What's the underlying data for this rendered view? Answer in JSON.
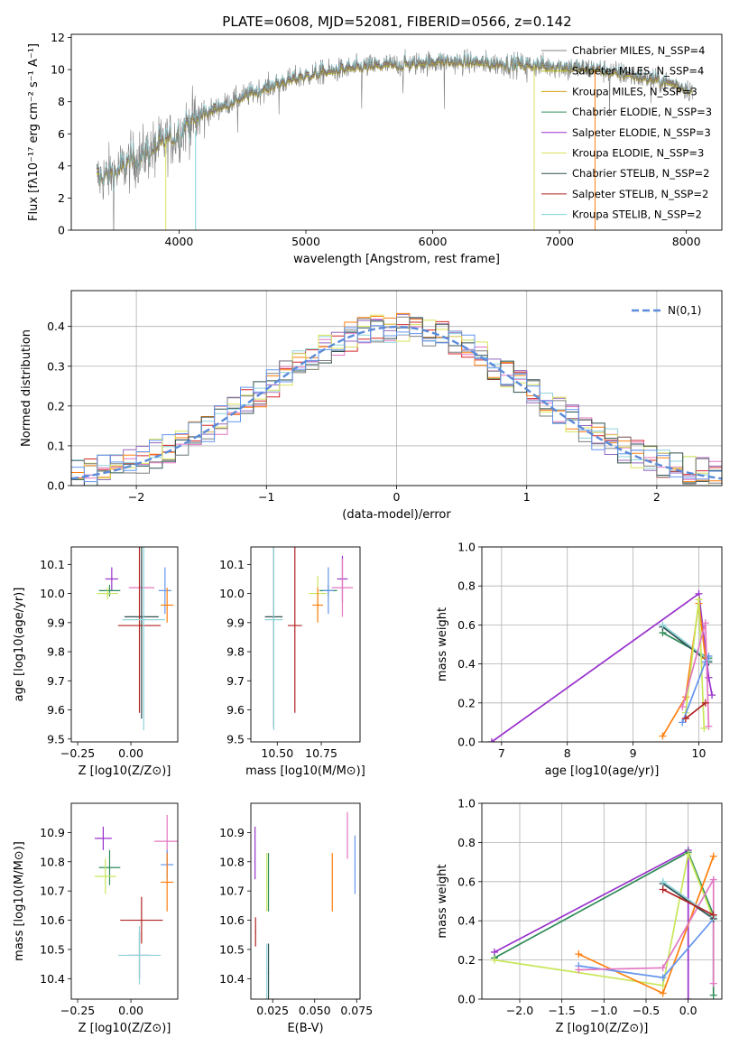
{
  "chart_data": [
    {
      "id": "spectrum",
      "type": "line",
      "title": "PLATE=0608, MJD=52081, FIBERID=0566, z=0.142",
      "xlabel": "wavelength [Angstrom, rest frame]",
      "ylabel": "Flux [fλ10⁻¹⁷ erg cm⁻² s⁻¹ A⁻¹]",
      "xlim": [
        3150,
        8280
      ],
      "ylim": [
        0,
        12.2
      ],
      "xticks": [
        4000,
        5000,
        6000,
        7000,
        8000
      ],
      "yticks": [
        0,
        2,
        4,
        6,
        8,
        10,
        12
      ],
      "grid": false,
      "legend_position": "top-right",
      "continuum": {
        "x": [
          3350,
          3500,
          3650,
          3800,
          3950,
          4100,
          4300,
          4500,
          4700,
          4900,
          5100,
          5300,
          5500,
          5700,
          5900,
          6100,
          6400,
          6700,
          7000,
          7300,
          7600,
          7900,
          8050
        ],
        "y": [
          3.2,
          3.6,
          4.4,
          5.1,
          5.7,
          6.8,
          7.6,
          8.3,
          8.9,
          9.4,
          9.8,
          10.0,
          10.2,
          10.3,
          10.4,
          10.5,
          10.4,
          10.3,
          10.2,
          10.0,
          9.6,
          9.1,
          8.7
        ]
      },
      "series": [
        {
          "name": "Chabrier MILES, N_SSP=4",
          "color": "#7f7f7f"
        },
        {
          "name": "Salpeter MILES, N_SSP=4",
          "color": "#bcbd22"
        },
        {
          "name": "Kroupa MILES, N_SSP=3",
          "color": "#d4a017"
        },
        {
          "name": "Chabrier ELODIE, N_SSP=3",
          "color": "#2e8b57"
        },
        {
          "name": "Salpeter ELODIE, N_SSP=3",
          "color": "#9932cc"
        },
        {
          "name": "Kroupa ELODIE, N_SSP=3",
          "color": "#dbe35b"
        },
        {
          "name": "Chabrier STELIB, N_SSP=2",
          "color": "#2f4f4f"
        },
        {
          "name": "Salpeter STELIB, N_SSP=2",
          "color": "#b22222"
        },
        {
          "name": "Kroupa STELIB, N_SSP=2",
          "color": "#7fd3d8"
        }
      ]
    },
    {
      "id": "residuals",
      "type": "line",
      "xlabel": "(data-model)/error",
      "ylabel": "Normed distribution",
      "xlim": [
        -2.5,
        2.5
      ],
      "ylim": [
        0,
        0.49
      ],
      "xticks": [
        -2,
        -1,
        0,
        1,
        2
      ],
      "yticks": [
        0.0,
        0.1,
        0.2,
        0.3,
        0.4
      ],
      "grid": true,
      "legend_position": "top-right",
      "reference": {
        "name": "N(0,1)",
        "color": "#5b8bd9"
      },
      "histogram_colors": [
        "#d62728",
        "#e377c2",
        "#9467bd",
        "#8fd3d9",
        "#ff7f0e",
        "#dbe35b",
        "#2f4f4f",
        "#7f7f7f",
        "#6495ed"
      ]
    },
    {
      "id": "age_vs_Z",
      "type": "scatter",
      "xlabel": "Z [log10(Z/Z⊙)]",
      "ylabel": "age  [log10(age/yr)]",
      "xlim": [
        -0.28,
        0.22
      ],
      "ylim": [
        9.49,
        10.16
      ],
      "xticks": [
        -0.25,
        0.0
      ],
      "yticks": [
        9.5,
        9.6,
        9.7,
        9.8,
        9.9,
        10.0,
        10.1
      ],
      "points": [
        {
          "x": -0.09,
          "y": 10.05,
          "color": "#9932cc"
        },
        {
          "x": -0.1,
          "y": 10.01,
          "color": "#2e8b57"
        },
        {
          "x": -0.11,
          "y": 10.0,
          "color": "#c8e65a"
        },
        {
          "x": 0.05,
          "y": 10.02,
          "color": "#e377c2"
        },
        {
          "x": 0.16,
          "y": 10.01,
          "color": "#6495ed"
        },
        {
          "x": 0.17,
          "y": 9.96,
          "color": "#ff7f0e"
        },
        {
          "x": 0.05,
          "y": 9.92,
          "color": "#2f4f4f"
        },
        {
          "x": 0.04,
          "y": 9.89,
          "color": "#b22222"
        },
        {
          "x": 0.06,
          "y": 9.91,
          "color": "#8fd3d9"
        }
      ]
    },
    {
      "id": "age_vs_mass",
      "type": "scatter",
      "xlabel": "mass [log10(M/M⊙)]",
      "ylabel": "",
      "xlim": [
        10.35,
        10.97
      ],
      "ylim": [
        9.49,
        10.16
      ],
      "xticks": [
        10.5,
        10.75
      ],
      "yticks": [
        9.5,
        9.6,
        9.7,
        9.8,
        9.9,
        10.0,
        10.1
      ],
      "points": [
        {
          "x": 10.87,
          "y": 10.05,
          "color": "#9932cc"
        },
        {
          "x": 10.79,
          "y": 10.01,
          "color": "#2e8b57"
        },
        {
          "x": 10.73,
          "y": 10.0,
          "color": "#c8e65a"
        },
        {
          "x": 10.87,
          "y": 10.02,
          "color": "#e377c2"
        },
        {
          "x": 10.79,
          "y": 10.01,
          "color": "#6495ed"
        },
        {
          "x": 10.73,
          "y": 9.96,
          "color": "#ff7f0e"
        },
        {
          "x": 10.48,
          "y": 9.92,
          "color": "#2f4f4f"
        },
        {
          "x": 10.6,
          "y": 9.89,
          "color": "#b22222"
        },
        {
          "x": 10.48,
          "y": 9.91,
          "color": "#8fd3d9"
        }
      ]
    },
    {
      "id": "mass_weight_vs_age",
      "type": "line",
      "xlabel": "age  [log10(age/yr)]",
      "ylabel": "mass weight",
      "xlim": [
        6.7,
        10.35
      ],
      "ylim": [
        0,
        1.0
      ],
      "xticks": [
        7,
        8,
        9,
        10
      ],
      "yticks": [
        0.0,
        0.2,
        0.4,
        0.6,
        0.8,
        1.0
      ],
      "grid": true,
      "series": [
        {
          "color": "#9932cc",
          "x": [
            6.85,
            10.0,
            10.15,
            10.2
          ],
          "y": [
            0.0,
            0.76,
            0.33,
            0.24
          ]
        },
        {
          "color": "#2e8b57",
          "x": [
            9.45,
            10.15
          ],
          "y": [
            0.56,
            0.43
          ]
        },
        {
          "color": "#2f4f4f",
          "x": [
            9.45,
            10.15
          ],
          "y": [
            0.59,
            0.41
          ]
        },
        {
          "color": "#8fd3d9",
          "x": [
            9.45,
            10.15
          ],
          "y": [
            0.6,
            0.42
          ]
        },
        {
          "color": "#ff7f0e",
          "x": [
            9.45,
            9.8,
            10.0,
            10.1
          ],
          "y": [
            0.03,
            0.23,
            0.71,
            0.43
          ]
        },
        {
          "color": "#c8e65a",
          "x": [
            9.8,
            10.0,
            10.08
          ],
          "y": [
            0.15,
            0.73,
            0.07
          ]
        },
        {
          "color": "#6495ed",
          "x": [
            9.75,
            10.1,
            10.15
          ],
          "y": [
            0.1,
            0.41,
            0.44
          ]
        },
        {
          "color": "#e377c2",
          "x": [
            9.75,
            10.1,
            10.15
          ],
          "y": [
            0.18,
            0.61,
            0.08
          ]
        },
        {
          "color": "#b22222",
          "x": [
            9.8,
            10.1
          ],
          "y": [
            0.12,
            0.2
          ]
        }
      ]
    },
    {
      "id": "mass_vs_Z",
      "type": "scatter",
      "xlabel": "Z [log10(Z/Z⊙)]",
      "ylabel": "mass [log10(M/M⊙)]",
      "xlim": [
        -0.28,
        0.22
      ],
      "ylim": [
        10.33,
        11.0
      ],
      "xticks": [
        -0.25,
        0.0
      ],
      "yticks": [
        10.4,
        10.5,
        10.6,
        10.7,
        10.8,
        10.9
      ],
      "points": [
        {
          "x": -0.13,
          "y": 10.88,
          "color": "#9932cc"
        },
        {
          "x": -0.1,
          "y": 10.78,
          "color": "#2e8b57"
        },
        {
          "x": -0.12,
          "y": 10.75,
          "color": "#c8e65a"
        },
        {
          "x": 0.17,
          "y": 10.87,
          "color": "#e377c2"
        },
        {
          "x": 0.17,
          "y": 10.79,
          "color": "#6495ed"
        },
        {
          "x": 0.17,
          "y": 10.73,
          "color": "#ff7f0e"
        },
        {
          "x": 0.04,
          "y": 10.48,
          "color": "#2f4f4f"
        },
        {
          "x": 0.05,
          "y": 10.6,
          "color": "#b22222"
        },
        {
          "x": 0.04,
          "y": 10.48,
          "color": "#8fd3d9"
        }
      ]
    },
    {
      "id": "mass_vs_ebv",
      "type": "scatter",
      "xlabel": "E(B-V)",
      "ylabel": "",
      "xlim": [
        0.012,
        0.077
      ],
      "ylim": [
        10.33,
        11.0
      ],
      "xticks": [
        0.025,
        0.05,
        0.075
      ],
      "yticks": [
        10.4,
        10.5,
        10.6,
        10.7,
        10.8,
        10.9
      ],
      "points": [
        {
          "x": 0.0145,
          "y": 10.83,
          "color": "#9932cc"
        },
        {
          "x": 0.0225,
          "y": 10.73,
          "color": "#2e8b57"
        },
        {
          "x": 0.0215,
          "y": 10.73,
          "color": "#c8e65a"
        },
        {
          "x": 0.0695,
          "y": 10.89,
          "color": "#e377c2"
        },
        {
          "x": 0.074,
          "y": 10.79,
          "color": "#6495ed"
        },
        {
          "x": 0.0605,
          "y": 10.73,
          "color": "#ff7f0e"
        },
        {
          "x": 0.0225,
          "y": 10.42,
          "color": "#2f4f4f"
        },
        {
          "x": 0.0148,
          "y": 10.56,
          "color": "#b22222"
        },
        {
          "x": 0.0215,
          "y": 10.42,
          "color": "#8fd3d9"
        }
      ]
    },
    {
      "id": "mass_weight_vs_Z",
      "type": "line",
      "xlabel": "Z [log10(Z/Z⊙)]",
      "ylabel": "mass weight",
      "xlim": [
        -2.45,
        0.4
      ],
      "ylim": [
        0,
        1.0
      ],
      "xticks": [
        -2.0,
        -1.5,
        -1.0,
        -0.5,
        0.0
      ],
      "yticks": [
        0.0,
        0.2,
        0.4,
        0.6,
        0.8,
        1.0
      ],
      "grid": true,
      "series": [
        {
          "color": "#9932cc",
          "x": [
            -2.3,
            0.0,
            0.0
          ],
          "y": [
            0.24,
            0.76,
            0.0
          ]
        },
        {
          "color": "#2e8b57",
          "x": [
            -2.3,
            0.0,
            0.3,
            0.3
          ],
          "y": [
            0.21,
            0.75,
            0.43,
            0.02
          ]
        },
        {
          "color": "#c8e65a",
          "x": [
            -2.3,
            -0.3,
            0.0,
            0.3
          ],
          "y": [
            0.2,
            0.07,
            0.74,
            0.41
          ]
        },
        {
          "color": "#ff7f0e",
          "x": [
            -1.3,
            -0.3,
            0.3
          ],
          "y": [
            0.23,
            0.03,
            0.73
          ]
        },
        {
          "color": "#6495ed",
          "x": [
            -1.3,
            -0.3,
            0.3
          ],
          "y": [
            0.17,
            0.11,
            0.41
          ]
        },
        {
          "color": "#e377c2",
          "x": [
            -1.3,
            -0.3,
            0.3,
            0.3
          ],
          "y": [
            0.15,
            0.16,
            0.61,
            0.08
          ]
        },
        {
          "color": "#2f4f4f",
          "x": [
            -0.3,
            0.3
          ],
          "y": [
            0.59,
            0.41
          ]
        },
        {
          "color": "#8fd3d9",
          "x": [
            -0.3,
            0.3
          ],
          "y": [
            0.6,
            0.42
          ]
        },
        {
          "color": "#b22222",
          "x": [
            -0.3,
            0.3
          ],
          "y": [
            0.56,
            0.43
          ]
        }
      ]
    }
  ]
}
